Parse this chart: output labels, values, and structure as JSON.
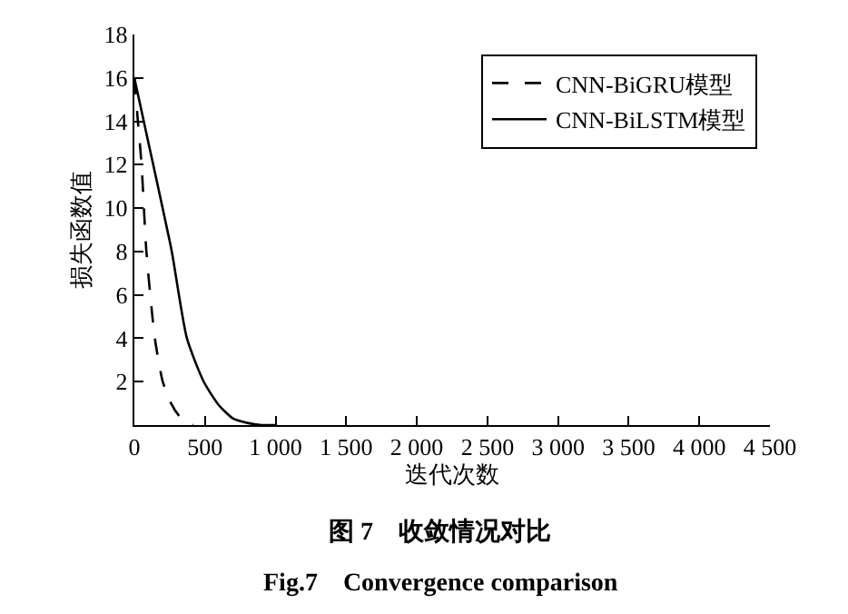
{
  "chart_data": {
    "type": "line",
    "xlabel": "迭代次数",
    "ylabel": "损失函数值",
    "annotations": [
      "图 7　收敛情况对比",
      "Fig.7　Convergence comparison"
    ],
    "series": [
      {
        "name": "CNN-BiGRU模型",
        "color": "#000000",
        "line_style": "dashed",
        "x": [
          0,
          25,
          51,
          85,
          145,
          201,
          260,
          320,
          415
        ],
        "values": [
          16,
          14,
          12,
          8,
          4,
          2,
          1,
          0.4,
          0
        ]
      },
      {
        "name": "CNN-BiLSTM模型",
        "color": "#000000",
        "line_style": "solid",
        "x": [
          0,
          100,
          200,
          265,
          372,
          491,
          600,
          700,
          800,
          900,
          1000
        ],
        "values": [
          16,
          13,
          10,
          8,
          4,
          2,
          0.9,
          0.3,
          0.1,
          0,
          0
        ]
      }
    ],
    "xlim": [
      0,
      4500
    ],
    "ylim": [
      0,
      18
    ],
    "xticks": [
      0,
      500,
      {
        "value": 1000,
        "label": "1 000"
      },
      {
        "value": 1500,
        "label": "1 500"
      },
      {
        "value": 2000,
        "label": "2 000"
      },
      {
        "value": 2500,
        "label": "2 500"
      },
      {
        "value": 3000,
        "label": "3 000"
      },
      {
        "value": 3500,
        "label": "3 500"
      },
      {
        "value": 4000,
        "label": "4 000"
      },
      {
        "value": 4500,
        "label": "4 500"
      }
    ],
    "yticks": [
      2,
      4,
      6,
      8,
      10,
      12,
      14,
      16,
      18
    ],
    "legend": "top right",
    "marker": "none"
  }
}
